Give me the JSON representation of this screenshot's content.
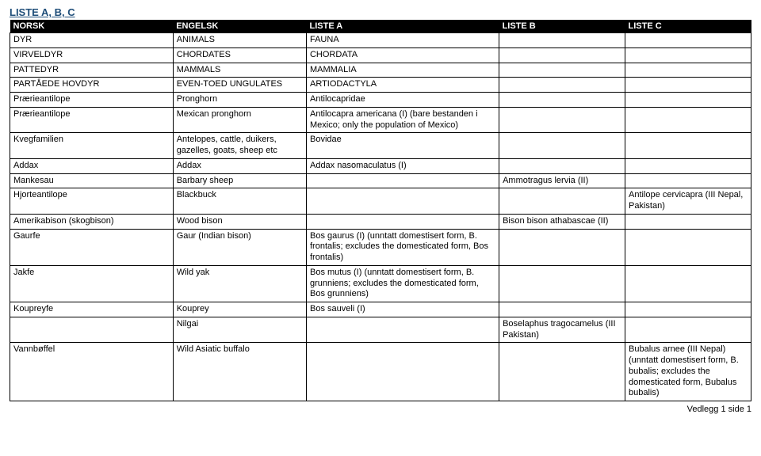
{
  "title": "LISTE A, B, C",
  "cols": {
    "norsk": "NORSK",
    "engelsk": "ENGELSK",
    "a": "LISTE A",
    "b": "LISTE B",
    "c": "LISTE C"
  },
  "rows": [
    {
      "norsk": "DYR",
      "engelsk": "ANIMALS",
      "a": "FAUNA",
      "b": "",
      "c": ""
    },
    {
      "norsk": "VIRVELDYR",
      "engelsk": "CHORDATES",
      "a": "CHORDATA",
      "b": "",
      "c": ""
    },
    {
      "norsk": "PATTEDYR",
      "engelsk": "MAMMALS",
      "a": "MAMMALIA",
      "b": "",
      "c": ""
    },
    {
      "norsk": "PARTÅEDE HOVDYR",
      "engelsk": "EVEN-TOED UNGULATES",
      "a": "ARTIODACTYLA",
      "b": "",
      "c": ""
    },
    {
      "norsk": "Prærieantilope",
      "engelsk": "Pronghorn",
      "a": "Antilocapridae",
      "b": "",
      "c": ""
    },
    {
      "norsk": "Prærieantilope",
      "engelsk": "Mexican pronghorn",
      "a": "Antilocapra americana (I) (bare bestanden i Mexico; only the population of Mexico)",
      "b": "",
      "c": ""
    },
    {
      "norsk": "Kvegfamilien",
      "engelsk": "Antelopes, cattle, duikers, gazelles, goats, sheep etc",
      "a": "Bovidae",
      "b": "",
      "c": ""
    },
    {
      "norsk": "Addax",
      "engelsk": "Addax",
      "a": "Addax nasomaculatus (I)",
      "b": "",
      "c": ""
    },
    {
      "norsk": "Mankesau",
      "engelsk": "Barbary sheep",
      "a": "",
      "b": "Ammotragus lervia (II)",
      "c": ""
    },
    {
      "norsk": "Hjorteantilope",
      "engelsk": "Blackbuck",
      "a": "",
      "b": "",
      "c": "Antilope cervicapra (III Nepal, Pakistan)"
    },
    {
      "norsk": "Amerikabison (skogbison)",
      "engelsk": "Wood bison",
      "a": "",
      "b": "Bison bison athabascae (II)",
      "c": ""
    },
    {
      "norsk": "Gaurfe",
      "engelsk": "Gaur (Indian bison)",
      "a": "Bos gaurus (I) (unntatt domestisert form, B. frontalis; excludes the domesticated form, Bos frontalis)",
      "b": "",
      "c": ""
    },
    {
      "norsk": "Jakfe",
      "engelsk": "Wild yak",
      "a": "Bos mutus (I) (unntatt domestisert form, B. grunniens; excludes the domesticated form, Bos grunniens)",
      "b": "",
      "c": ""
    },
    {
      "norsk": "Koupreyfe",
      "engelsk": "Kouprey",
      "a": "Bos sauveli (I)",
      "b": "",
      "c": ""
    },
    {
      "norsk": "",
      "engelsk": "Nilgai",
      "a": "",
      "b": "Boselaphus tragocamelus (III Pakistan)",
      "c": ""
    },
    {
      "norsk": "Vannbøffel",
      "engelsk": "Wild Asiatic buffalo",
      "a": "",
      "b": "",
      "c": "Bubalus arnee (III Nepal) (unntatt domestisert form, B. bubalis; excludes the domesticated form, Bubalus bubalis)"
    }
  ],
  "footer": "Vedlegg 1 side 1",
  "colors": {
    "heading": "#1f4e79",
    "header_bg": "#000000",
    "header_fg": "#ffffff",
    "border": "#000000",
    "bg": "#ffffff"
  }
}
